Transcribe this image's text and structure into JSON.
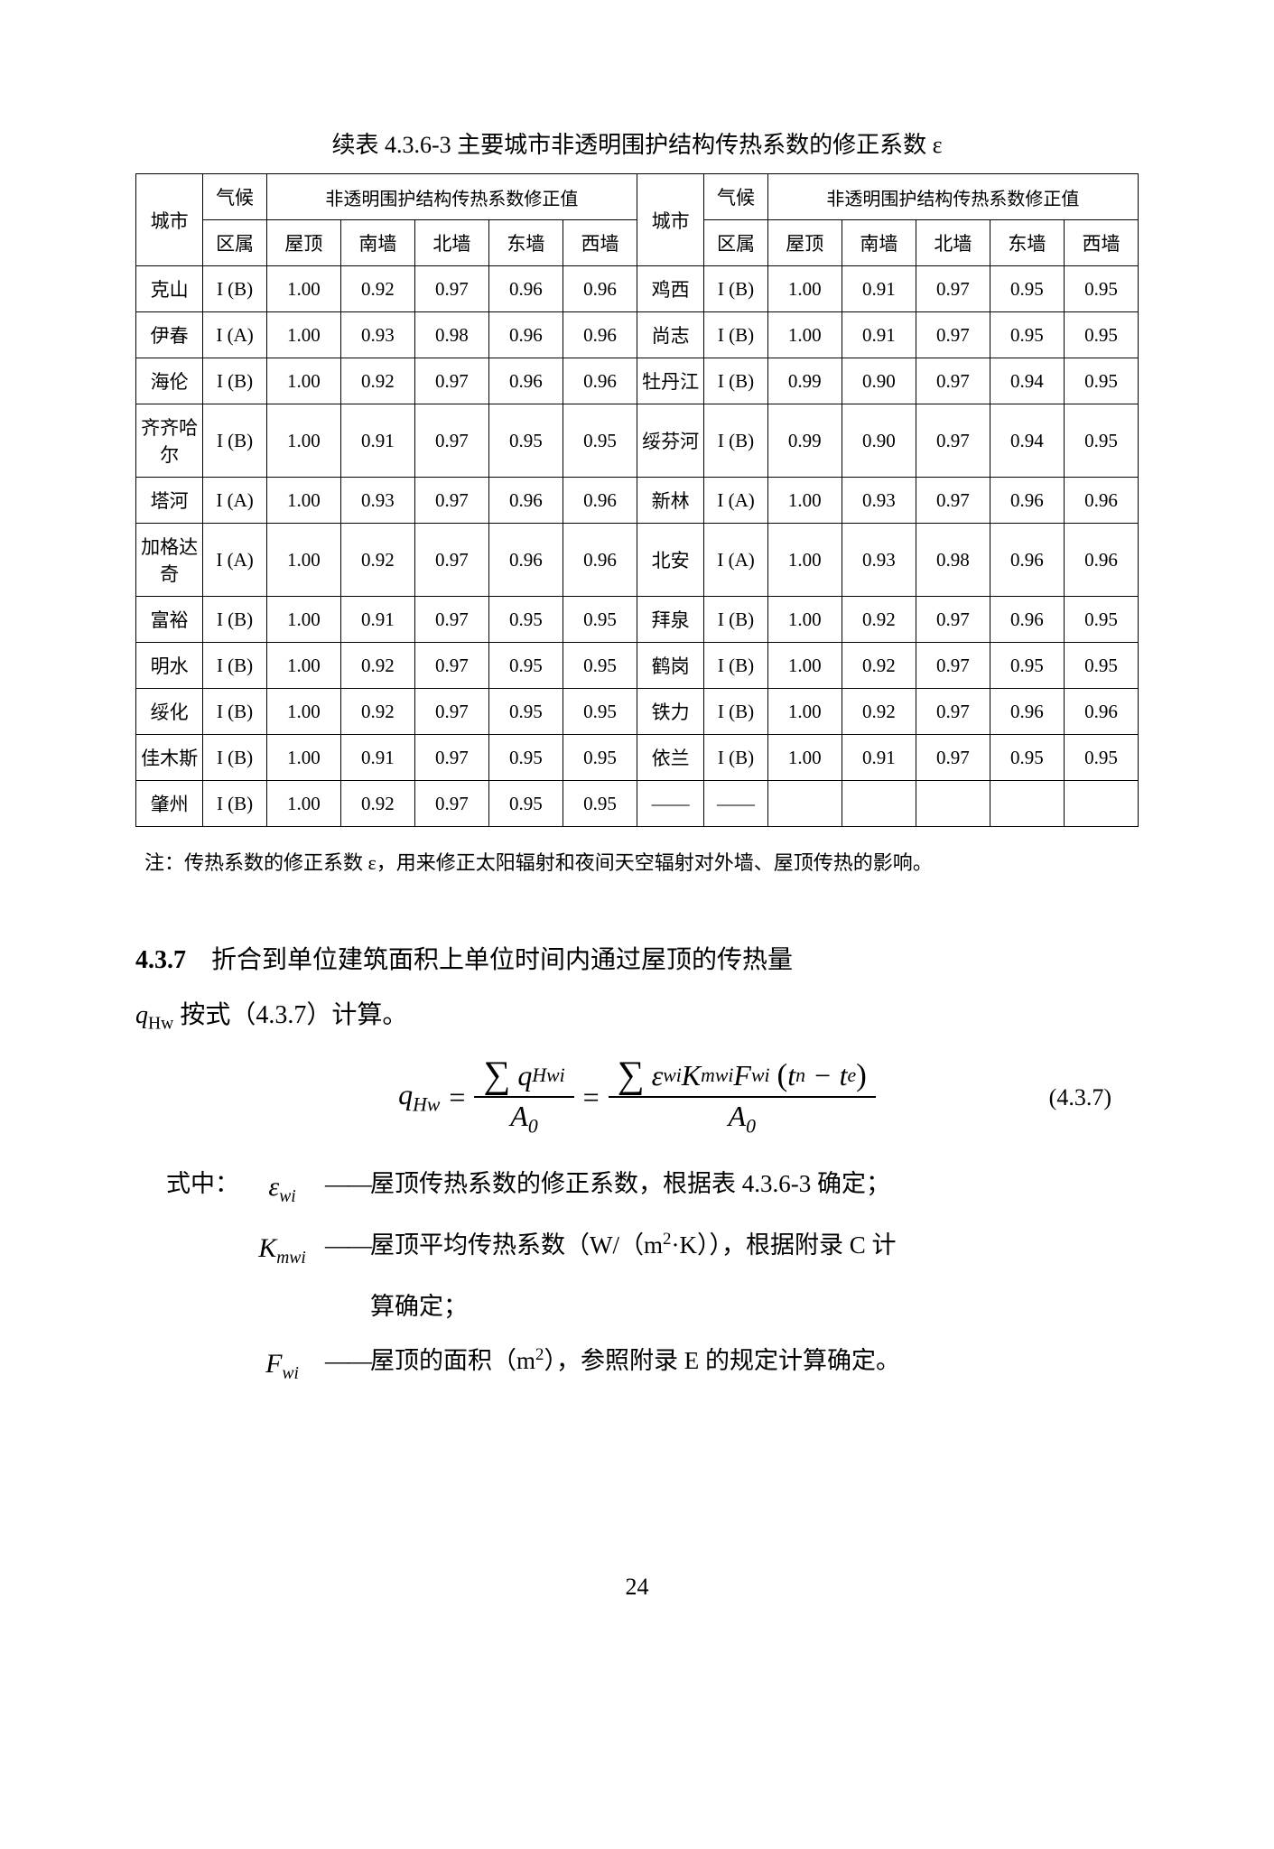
{
  "caption": "续表  4.3.6-3    主要城市非透明围护结构传热系数的修正系数 ε",
  "header": {
    "city": "城市",
    "zone_top": "气候",
    "zone_bot": "区属",
    "group": "非透明围护结构传热系数修正值",
    "cols": [
      "屋顶",
      "南墙",
      "北墙",
      "东墙",
      "西墙"
    ]
  },
  "rows": [
    {
      "c1": "克山",
      "z1": "I (B)",
      "v1": [
        "1.00",
        "0.92",
        "0.97",
        "0.96",
        "0.96"
      ],
      "c2": "鸡西",
      "z2": "I (B)",
      "v2": [
        "1.00",
        "0.91",
        "0.97",
        "0.95",
        "0.95"
      ]
    },
    {
      "c1": "伊春",
      "z1": "I (A)",
      "v1": [
        "1.00",
        "0.93",
        "0.98",
        "0.96",
        "0.96"
      ],
      "c2": "尚志",
      "z2": "I (B)",
      "v2": [
        "1.00",
        "0.91",
        "0.97",
        "0.95",
        "0.95"
      ]
    },
    {
      "c1": "海伦",
      "z1": "I (B)",
      "v1": [
        "1.00",
        "0.92",
        "0.97",
        "0.96",
        "0.96"
      ],
      "c2": "牡丹江",
      "z2": "I (B)",
      "v2": [
        "0.99",
        "0.90",
        "0.97",
        "0.94",
        "0.95"
      ]
    },
    {
      "c1": "齐齐哈尔",
      "z1": "I (B)",
      "v1": [
        "1.00",
        "0.91",
        "0.97",
        "0.95",
        "0.95"
      ],
      "c2": "绥芬河",
      "z2": "I (B)",
      "v2": [
        "0.99",
        "0.90",
        "0.97",
        "0.94",
        "0.95"
      ]
    },
    {
      "c1": "塔河",
      "z1": "I (A)",
      "v1": [
        "1.00",
        "0.93",
        "0.97",
        "0.96",
        "0.96"
      ],
      "c2": "新林",
      "z2": "I (A)",
      "v2": [
        "1.00",
        "0.93",
        "0.97",
        "0.96",
        "0.96"
      ]
    },
    {
      "c1": "加格达奇",
      "z1": "I (A)",
      "v1": [
        "1.00",
        "0.92",
        "0.97",
        "0.96",
        "0.96"
      ],
      "c2": "北安",
      "z2": "I (A)",
      "v2": [
        "1.00",
        "0.93",
        "0.98",
        "0.96",
        "0.96"
      ]
    },
    {
      "c1": "富裕",
      "z1": "I (B)",
      "v1": [
        "1.00",
        "0.91",
        "0.97",
        "0.95",
        "0.95"
      ],
      "c2": "拜泉",
      "z2": "I (B)",
      "v2": [
        "1.00",
        "0.92",
        "0.97",
        "0.96",
        "0.95"
      ]
    },
    {
      "c1": "明水",
      "z1": "I (B)",
      "v1": [
        "1.00",
        "0.92",
        "0.97",
        "0.95",
        "0.95"
      ],
      "c2": "鹤岗",
      "z2": "I (B)",
      "v2": [
        "1.00",
        "0.92",
        "0.97",
        "0.95",
        "0.95"
      ]
    },
    {
      "c1": "绥化",
      "z1": "I (B)",
      "v1": [
        "1.00",
        "0.92",
        "0.97",
        "0.95",
        "0.95"
      ],
      "c2": "铁力",
      "z2": "I (B)",
      "v2": [
        "1.00",
        "0.92",
        "0.97",
        "0.96",
        "0.96"
      ]
    },
    {
      "c1": "佳木斯",
      "z1": "I (B)",
      "v1": [
        "1.00",
        "0.91",
        "0.97",
        "0.95",
        "0.95"
      ],
      "c2": "依兰",
      "z2": "I (B)",
      "v2": [
        "1.00",
        "0.91",
        "0.97",
        "0.95",
        "0.95"
      ]
    },
    {
      "c1": "肇州",
      "z1": "I (B)",
      "v1": [
        "1.00",
        "0.92",
        "0.97",
        "0.95",
        "0.95"
      ],
      "c2": "——",
      "z2": "——",
      "v2": [
        "",
        "",
        "",
        "",
        ""
      ]
    }
  ],
  "note": "注：传热系数的修正系数 ε，用来修正太阳辐射和夜间天空辐射对外墙、屋顶传热的影响。",
  "section": {
    "num": "4.3.7",
    "text_a": "　折合到单位建筑面积上单位时间内通过屋顶的传热量",
    "text_b": "按式（4.3.7）计算。"
  },
  "formula_num": "(4.3.7)",
  "where_label": "式中：",
  "where": [
    {
      "sym_html": "<i>ε</i><sub style='font-size:0.65em;font-style:italic'>wi</sub>",
      "desc": "屋顶传热系数的修正系数，根据表 4.3.6-3 确定；"
    },
    {
      "sym_html": "<i>K</i><sub style='font-size:0.65em;font-style:italic'>mwi</sub>",
      "desc": "屋顶平均传热系数（W/（m<sup style='font-size:0.7em'>2</sup>·K）），根据附录 C  计",
      "cont": "算确定；"
    },
    {
      "sym_html": "<i>F</i><sub style='font-size:0.65em;font-style:italic'>wi</sub>",
      "desc": "屋顶的面积（m<sup style='font-size:0.7em'>2</sup>），参照附录 E 的规定计算确定。"
    }
  ],
  "page": "24"
}
